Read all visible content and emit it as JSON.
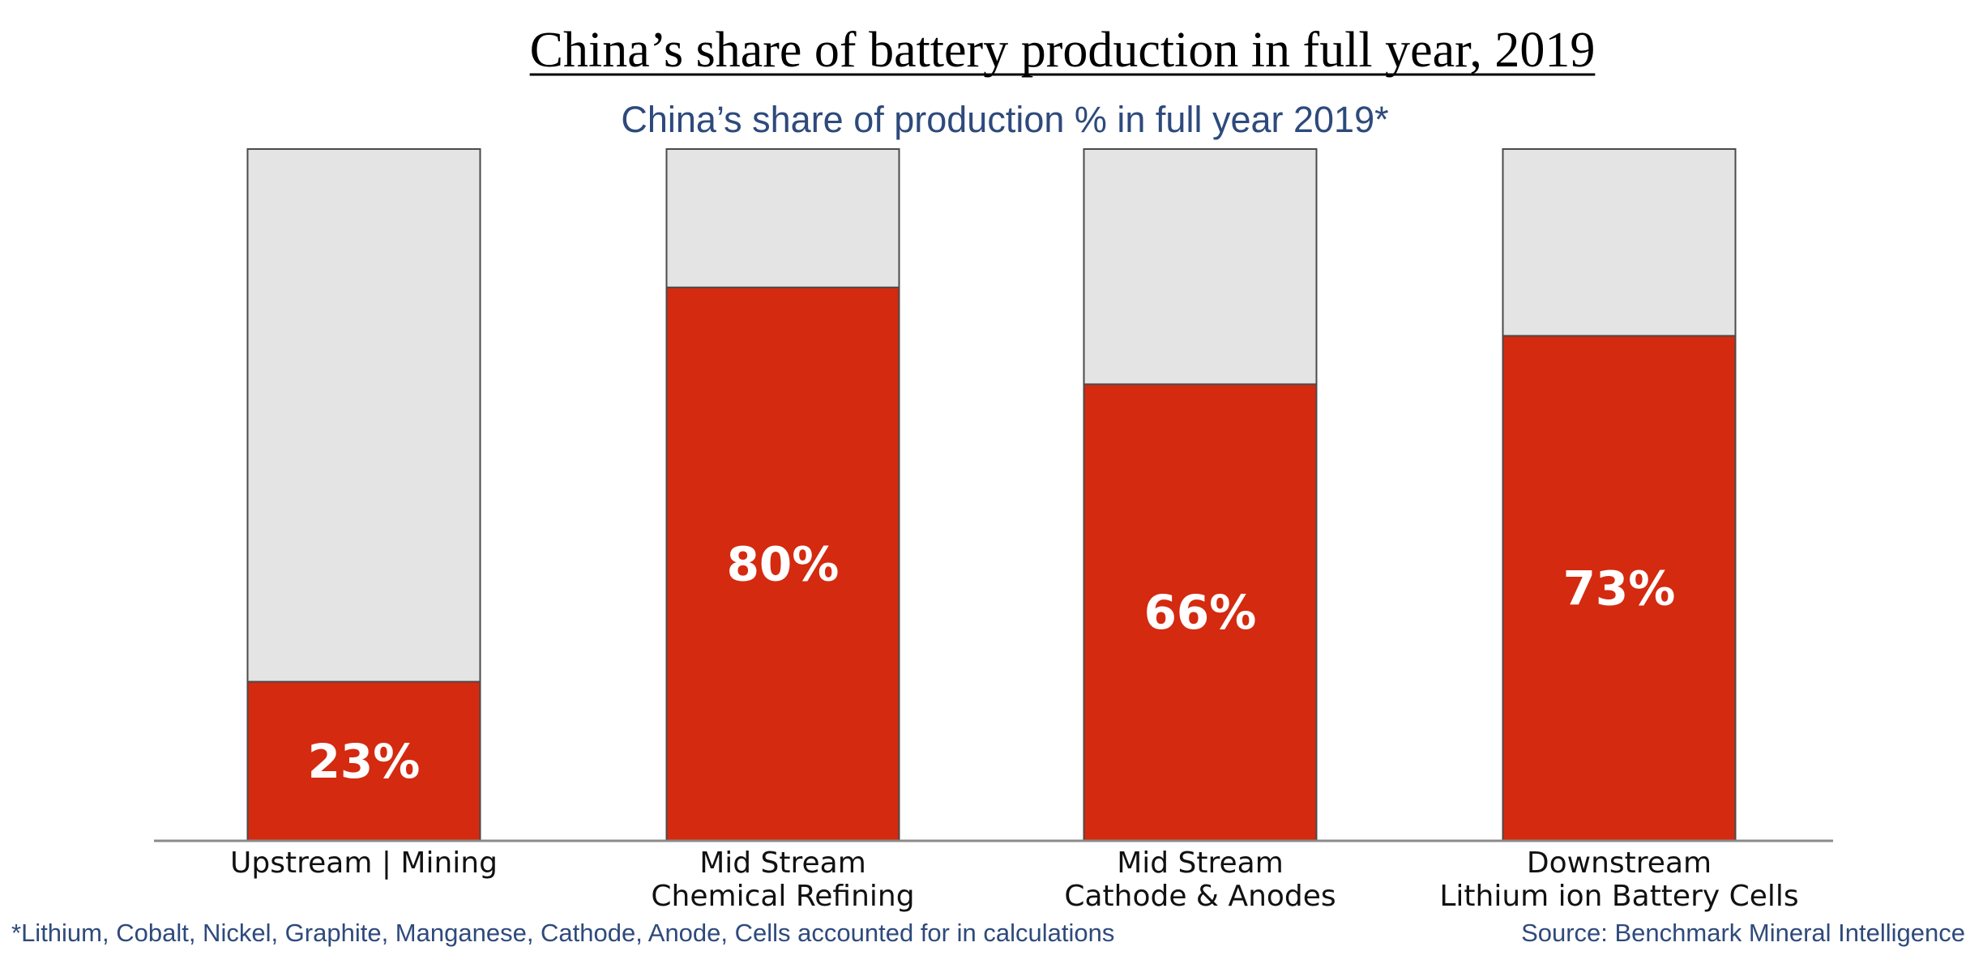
{
  "chart_data": {
    "type": "bar",
    "title": "China’s share of battery production in full year, 2019",
    "subtitle": "China’s share of production % in full year 2019*",
    "categories": [
      [
        "Upstream | Mining"
      ],
      [
        "Mid Stream",
        "Chemical Refining"
      ],
      [
        "Mid Stream",
        "Cathode & Anodes"
      ],
      [
        "Downstream",
        "Lithium ion Battery Cells"
      ]
    ],
    "series": [
      {
        "values": [
          23,
          80,
          66,
          73
        ]
      }
    ],
    "value_labels": [
      "23%",
      "80%",
      "66%",
      "73%"
    ],
    "ylim": [
      0,
      100
    ],
    "grid": false,
    "stacked_remainder": true,
    "colors": {
      "bar": "#d42a10",
      "remainder": "#e4e4e4",
      "bar_border": "#4a4a4a",
      "axis": "#8a8a8a"
    }
  },
  "footnotes": {
    "note": "*Lithium, Cobalt, Nickel, Graphite, Manganese, Cathode, Anode, Cells accounted for in calculations",
    "source": "Source: Benchmark Mineral Intelligence"
  }
}
